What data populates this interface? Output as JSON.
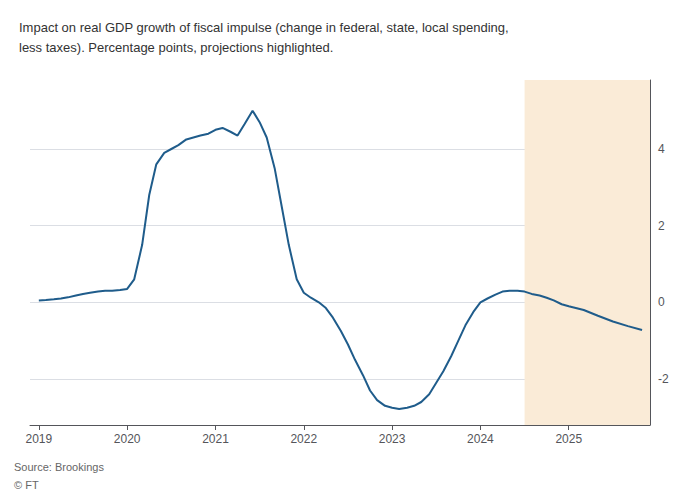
{
  "chart_data": {
    "type": "line",
    "title": "Impact on real GDP growth of fiscal impulse (change in federal, state, local spending,\nless taxes). Percentage points, projections highlighted.",
    "annotations": [
      "Source: Brookings",
      "© FT"
    ],
    "color": "#1f5c8b",
    "highlight": {
      "start": 2024.5,
      "color": "#faebd7"
    },
    "xlim": [
      2018.9,
      2025.92
    ],
    "ylim": [
      -3.2,
      5.8
    ],
    "xticks": [
      2019,
      2020,
      2021,
      2022,
      2023,
      2024,
      2025
    ],
    "yticks": [
      -2,
      0,
      2,
      4
    ],
    "grid": true,
    "x": [
      2019.0,
      2019.08,
      2019.17,
      2019.25,
      2019.33,
      2019.42,
      2019.5,
      2019.58,
      2019.67,
      2019.75,
      2019.83,
      2019.92,
      2020.0,
      2020.08,
      2020.17,
      2020.25,
      2020.33,
      2020.42,
      2020.5,
      2020.58,
      2020.67,
      2020.75,
      2020.83,
      2020.92,
      2021.0,
      2021.08,
      2021.17,
      2021.25,
      2021.33,
      2021.42,
      2021.5,
      2021.58,
      2021.67,
      2021.75,
      2021.83,
      2021.92,
      2022.0,
      2022.08,
      2022.17,
      2022.25,
      2022.33,
      2022.42,
      2022.5,
      2022.58,
      2022.67,
      2022.75,
      2022.83,
      2022.92,
      2023.0,
      2023.08,
      2023.17,
      2023.25,
      2023.33,
      2023.42,
      2023.5,
      2023.58,
      2023.67,
      2023.75,
      2023.83,
      2023.92,
      2024.0,
      2024.08,
      2024.17,
      2024.25,
      2024.33,
      2024.42,
      2024.5,
      2024.58,
      2024.67,
      2024.75,
      2024.83,
      2024.92,
      2025.0,
      2025.17,
      2025.33,
      2025.5,
      2025.67,
      2025.83
    ],
    "values": [
      0.05,
      0.06,
      0.08,
      0.1,
      0.13,
      0.18,
      0.22,
      0.25,
      0.28,
      0.3,
      0.3,
      0.32,
      0.35,
      0.6,
      1.5,
      2.8,
      3.6,
      3.9,
      4.0,
      4.1,
      4.25,
      4.3,
      4.35,
      4.4,
      4.5,
      4.55,
      4.45,
      4.35,
      4.65,
      5.0,
      4.7,
      4.3,
      3.5,
      2.5,
      1.5,
      0.6,
      0.25,
      0.12,
      0.0,
      -0.15,
      -0.4,
      -0.75,
      -1.1,
      -1.5,
      -1.9,
      -2.3,
      -2.55,
      -2.7,
      -2.75,
      -2.78,
      -2.75,
      -2.7,
      -2.6,
      -2.4,
      -2.1,
      -1.8,
      -1.4,
      -1.0,
      -0.6,
      -0.25,
      0.0,
      0.1,
      0.2,
      0.28,
      0.3,
      0.3,
      0.28,
      0.22,
      0.18,
      0.12,
      0.05,
      -0.05,
      -0.1,
      -0.2,
      -0.35,
      -0.5,
      -0.62,
      -0.72
    ]
  }
}
